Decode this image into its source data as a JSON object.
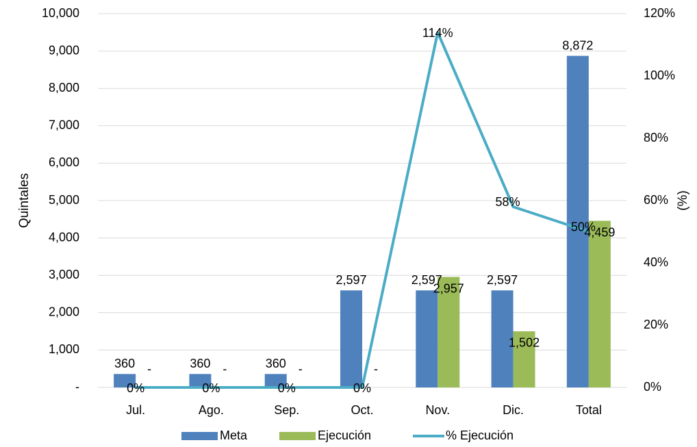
{
  "chart_data": {
    "type": "bar",
    "categories": [
      "Jul.",
      "Ago.",
      "Sep.",
      "Oct.",
      "Nov.",
      "Dic.",
      "Total"
    ],
    "series": [
      {
        "name": "Meta",
        "kind": "bar",
        "axis": "left",
        "color": "#4f81bd",
        "values": [
          360,
          360,
          360,
          2597,
          2597,
          2597,
          8872
        ],
        "labels": [
          "360",
          "360",
          "360",
          "2,597",
          "2,597",
          "2,597",
          "8,872"
        ]
      },
      {
        "name": "Ejecución",
        "kind": "bar",
        "axis": "left",
        "color": "#9bbb59",
        "values": [
          0,
          0,
          0,
          0,
          2957,
          1502,
          4459
        ],
        "labels": [
          "-",
          "-",
          "-",
          "-",
          "2,957",
          "1,502",
          "4,459"
        ]
      },
      {
        "name": "% Ejecución",
        "kind": "line",
        "axis": "right",
        "color": "#4bacc6",
        "values": [
          0,
          0,
          0,
          0,
          114,
          58,
          50
        ],
        "labels": [
          "0%",
          "0%",
          "0%",
          "0%",
          "114%",
          "58%",
          "50%"
        ]
      }
    ],
    "ylabel": "Quintales",
    "y2label": "(%)",
    "ylim": [
      0,
      10000
    ],
    "y2lim": [
      0,
      120
    ],
    "yticks": [
      0,
      1000,
      2000,
      3000,
      4000,
      5000,
      6000,
      7000,
      8000,
      9000,
      10000
    ],
    "ytick_labels": [
      "-",
      "1,000",
      "2,000",
      "3,000",
      "4,000",
      "5,000",
      "6,000",
      "7,000",
      "8,000",
      "9,000",
      "10,000"
    ],
    "y2ticks": [
      0,
      20,
      40,
      60,
      80,
      100,
      120
    ],
    "y2tick_labels": [
      "0%",
      "20%",
      "40%",
      "60%",
      "80%",
      "100%",
      "120%"
    ],
    "grid": true,
    "legend_position": "bottom"
  }
}
